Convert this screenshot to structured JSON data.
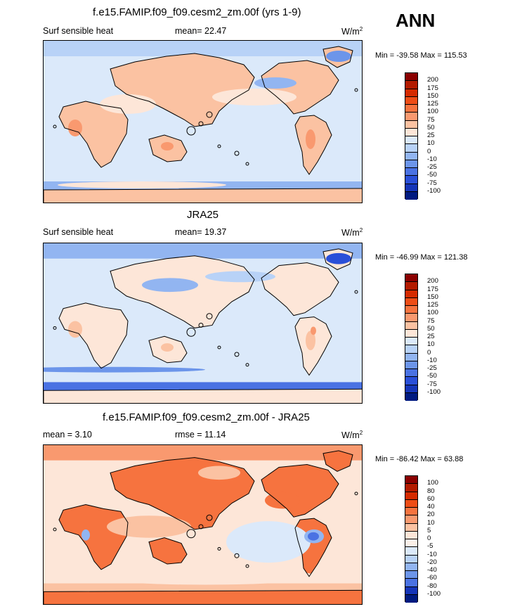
{
  "season": "ANN",
  "panels": [
    {
      "id": "p1",
      "title": "f.e15.FAMIP.f09_f09.cesm2_zm.00f (yrs 1-9)",
      "left_label": "Surf sensible heat",
      "center_label": "mean=  22.47",
      "units": "W/m",
      "units_sup": "2",
      "minmax": "Min = -39.58 Max = 115.53",
      "colorbar_ticks": [
        "200",
        "175",
        "150",
        "125",
        "100",
        "75",
        "50",
        "25",
        "10",
        "0",
        "-10",
        "-25",
        "-50",
        "-75",
        "-100"
      ],
      "colorbar_colors": [
        "#8b0000",
        "#b31b00",
        "#d52b00",
        "#ee4d16",
        "#f6733f",
        "#f9996f",
        "#fbc2a2",
        "#fde6d8",
        "#dbe9fa",
        "#b8d2f7",
        "#92b5f1",
        "#6c95ea",
        "#4a72e3",
        "#2a4fd8",
        "#1535b8",
        "#001a80"
      ],
      "field": "model"
    },
    {
      "id": "p2",
      "title": "JRA25",
      "left_label": "Surf sensible heat",
      "center_label": "mean=  19.37",
      "units": "W/m",
      "units_sup": "2",
      "minmax": "Min = -46.99 Max = 121.38",
      "colorbar_ticks": [
        "200",
        "175",
        "150",
        "125",
        "100",
        "75",
        "50",
        "25",
        "10",
        "0",
        "-10",
        "-25",
        "-50",
        "-75",
        "-100"
      ],
      "colorbar_colors": [
        "#8b0000",
        "#b31b00",
        "#d52b00",
        "#ee4d16",
        "#f6733f",
        "#f9996f",
        "#fbc2a2",
        "#fde6d8",
        "#dbe9fa",
        "#b8d2f7",
        "#92b5f1",
        "#6c95ea",
        "#4a72e3",
        "#2a4fd8",
        "#1535b8",
        "#001a80"
      ],
      "field": "obs"
    },
    {
      "id": "p3",
      "title": "f.e15.FAMIP.f09_f09.cesm2_zm.00f - JRA25",
      "left_label": "mean =   3.10",
      "center_label": "rmse =  11.14",
      "units": "W/m",
      "units_sup": "2",
      "minmax": "Min = -86.42 Max =  63.88",
      "colorbar_ticks": [
        "100",
        "80",
        "60",
        "40",
        "20",
        "10",
        "5",
        "0",
        "-5",
        "-10",
        "-20",
        "-40",
        "-60",
        "-80",
        "-100"
      ],
      "colorbar_colors": [
        "#8b0000",
        "#b31b00",
        "#d52b00",
        "#ee4d16",
        "#f6733f",
        "#f9996f",
        "#fbc2a2",
        "#fde6d8",
        "#fbf0e8",
        "#dbe9fa",
        "#b8d2f7",
        "#92b5f1",
        "#6c95ea",
        "#4a72e3",
        "#1535b8",
        "#001a80"
      ],
      "field": "diff"
    }
  ],
  "chart_data": [
    {
      "type": "heatmap",
      "title": "f.e15.FAMIP.f09_f09.cesm2_zm.00f (yrs 1-9)",
      "variable": "Surf sensible heat",
      "mean": 22.47,
      "min": -39.58,
      "max": 115.53,
      "units": "W/m2",
      "levels": [
        -100,
        -75,
        -50,
        -25,
        -10,
        0,
        10,
        25,
        50,
        75,
        100,
        125,
        150,
        175,
        200
      ]
    },
    {
      "type": "heatmap",
      "title": "JRA25",
      "variable": "Surf sensible heat",
      "mean": 19.37,
      "min": -46.99,
      "max": 121.38,
      "units": "W/m2",
      "levels": [
        -100,
        -75,
        -50,
        -25,
        -10,
        0,
        10,
        25,
        50,
        75,
        100,
        125,
        150,
        175,
        200
      ]
    },
    {
      "type": "heatmap",
      "title": "f.e15.FAMIP.f09_f09.cesm2_zm.00f - JRA25",
      "mean": 3.1,
      "rmse": 11.14,
      "min": -86.42,
      "max": 63.88,
      "units": "W/m2",
      "levels": [
        -100,
        -80,
        -60,
        -40,
        -20,
        -10,
        -5,
        0,
        5,
        10,
        20,
        40,
        60,
        80,
        100
      ]
    }
  ]
}
